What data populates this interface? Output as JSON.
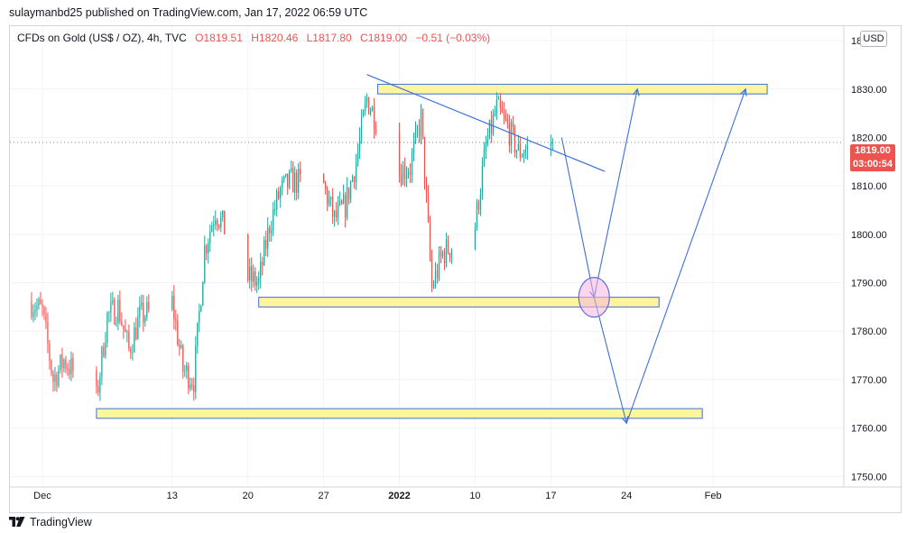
{
  "publisher_line": "sulaymanbd25 published on TradingView.com, Jan 17, 2022 06:59 UTC",
  "legend": {
    "symbol": "CFDs on Gold (US$ / OZ), 4h, TVC",
    "open": "O1819.51",
    "high": "H1820.46",
    "low": "L1817.80",
    "close": "C1819.00",
    "change": "−0.51 (−0.03%)"
  },
  "currency_label": "USD",
  "last_price": {
    "price": "1819.00",
    "countdown": "03:00:54"
  },
  "footer": {
    "brand": "TradingView",
    "logo_icon": "tradingview-logo-icon"
  },
  "colors": {
    "up": "#26a69a",
    "down": "#ef5350",
    "zone_fill": "#fff59d",
    "zone_stroke": "#3f6fd8",
    "drawing": "#3f6fd8"
  },
  "chart_data": {
    "type": "candlestick",
    "interval": "4h",
    "ylim": [
      1748,
      1843
    ],
    "y_ticks": [
      "1840.00",
      "1830.00",
      "1820.00",
      "1810.00",
      "1800.00",
      "1790.00",
      "1780.00",
      "1770.00",
      "1760.00",
      "1750.00"
    ],
    "x_ticks": [
      {
        "label": "Dec",
        "date": "2021-12-01"
      },
      {
        "label": "13",
        "date": "2021-12-13"
      },
      {
        "label": "20",
        "date": "2021-12-20"
      },
      {
        "label": "27",
        "date": "2021-12-27"
      },
      {
        "label": "2022",
        "date": "2022-01-03"
      },
      {
        "label": "10",
        "date": "2022-01-10"
      },
      {
        "label": "17",
        "date": "2022-01-17"
      },
      {
        "label": "24",
        "date": "2022-01-24"
      },
      {
        "label": "Feb",
        "date": "2022-02-01"
      }
    ],
    "price_path": [
      [
        "2021-11-30",
        1786
      ],
      [
        "2021-12-01",
        1784
      ],
      [
        "2021-12-02",
        1770
      ],
      [
        "2021-12-03",
        1774
      ],
      [
        "2021-12-06",
        1766
      ],
      [
        "2021-12-07",
        1783
      ],
      [
        "2021-12-08",
        1785
      ],
      [
        "2021-12-09",
        1776
      ],
      [
        "2021-12-10",
        1783
      ],
      [
        "2021-12-13",
        1786
      ],
      [
        "2021-12-14",
        1772
      ],
      [
        "2021-12-15",
        1770
      ],
      [
        "2021-12-16",
        1797
      ],
      [
        "2021-12-17",
        1805
      ],
      [
        "2021-12-20",
        1791
      ],
      [
        "2021-12-21",
        1790
      ],
      [
        "2021-12-22",
        1802
      ],
      [
        "2021-12-23",
        1809
      ],
      [
        "2021-12-24",
        1811
      ],
      [
        "2021-12-27",
        1810
      ],
      [
        "2021-12-28",
        1803
      ],
      [
        "2021-12-29",
        1806
      ],
      [
        "2021-12-30",
        1815
      ],
      [
        "2021-12-31",
        1828
      ],
      [
        "2022-01-03",
        1813
      ],
      [
        "2022-01-04",
        1814
      ],
      [
        "2022-01-05",
        1824
      ],
      [
        "2022-01-06",
        1789
      ],
      [
        "2022-01-07",
        1796
      ],
      [
        "2022-01-10",
        1802
      ],
      [
        "2022-01-11",
        1818
      ],
      [
        "2022-01-12",
        1826
      ],
      [
        "2022-01-13",
        1822
      ],
      [
        "2022-01-14",
        1817
      ],
      [
        "2022-01-17",
        1819
      ]
    ],
    "zones": [
      {
        "from": "2022-01-01",
        "to": "2022-02-06",
        "low": 1829,
        "high": 1831
      },
      {
        "from": "2021-12-21",
        "to": "2022-01-27",
        "low": 1785,
        "high": 1787
      },
      {
        "from": "2021-12-06",
        "to": "2022-01-31",
        "low": 1762,
        "high": 1764
      }
    ],
    "trendline": {
      "from": [
        "2021-12-31",
        1833
      ],
      "to": [
        "2022-01-22",
        1813
      ]
    },
    "projection_paths": [
      [
        [
          "2022-01-18",
          1820
        ],
        [
          "2022-01-21",
          1787
        ],
        [
          "2022-01-25",
          1830
        ]
      ],
      [
        [
          "2022-01-21",
          1787
        ],
        [
          "2022-01-24",
          1761
        ],
        [
          "2022-02-04",
          1830
        ]
      ]
    ],
    "highlight_circle": {
      "date": "2022-01-21",
      "price": 1787
    },
    "last_price": 1819.0
  }
}
